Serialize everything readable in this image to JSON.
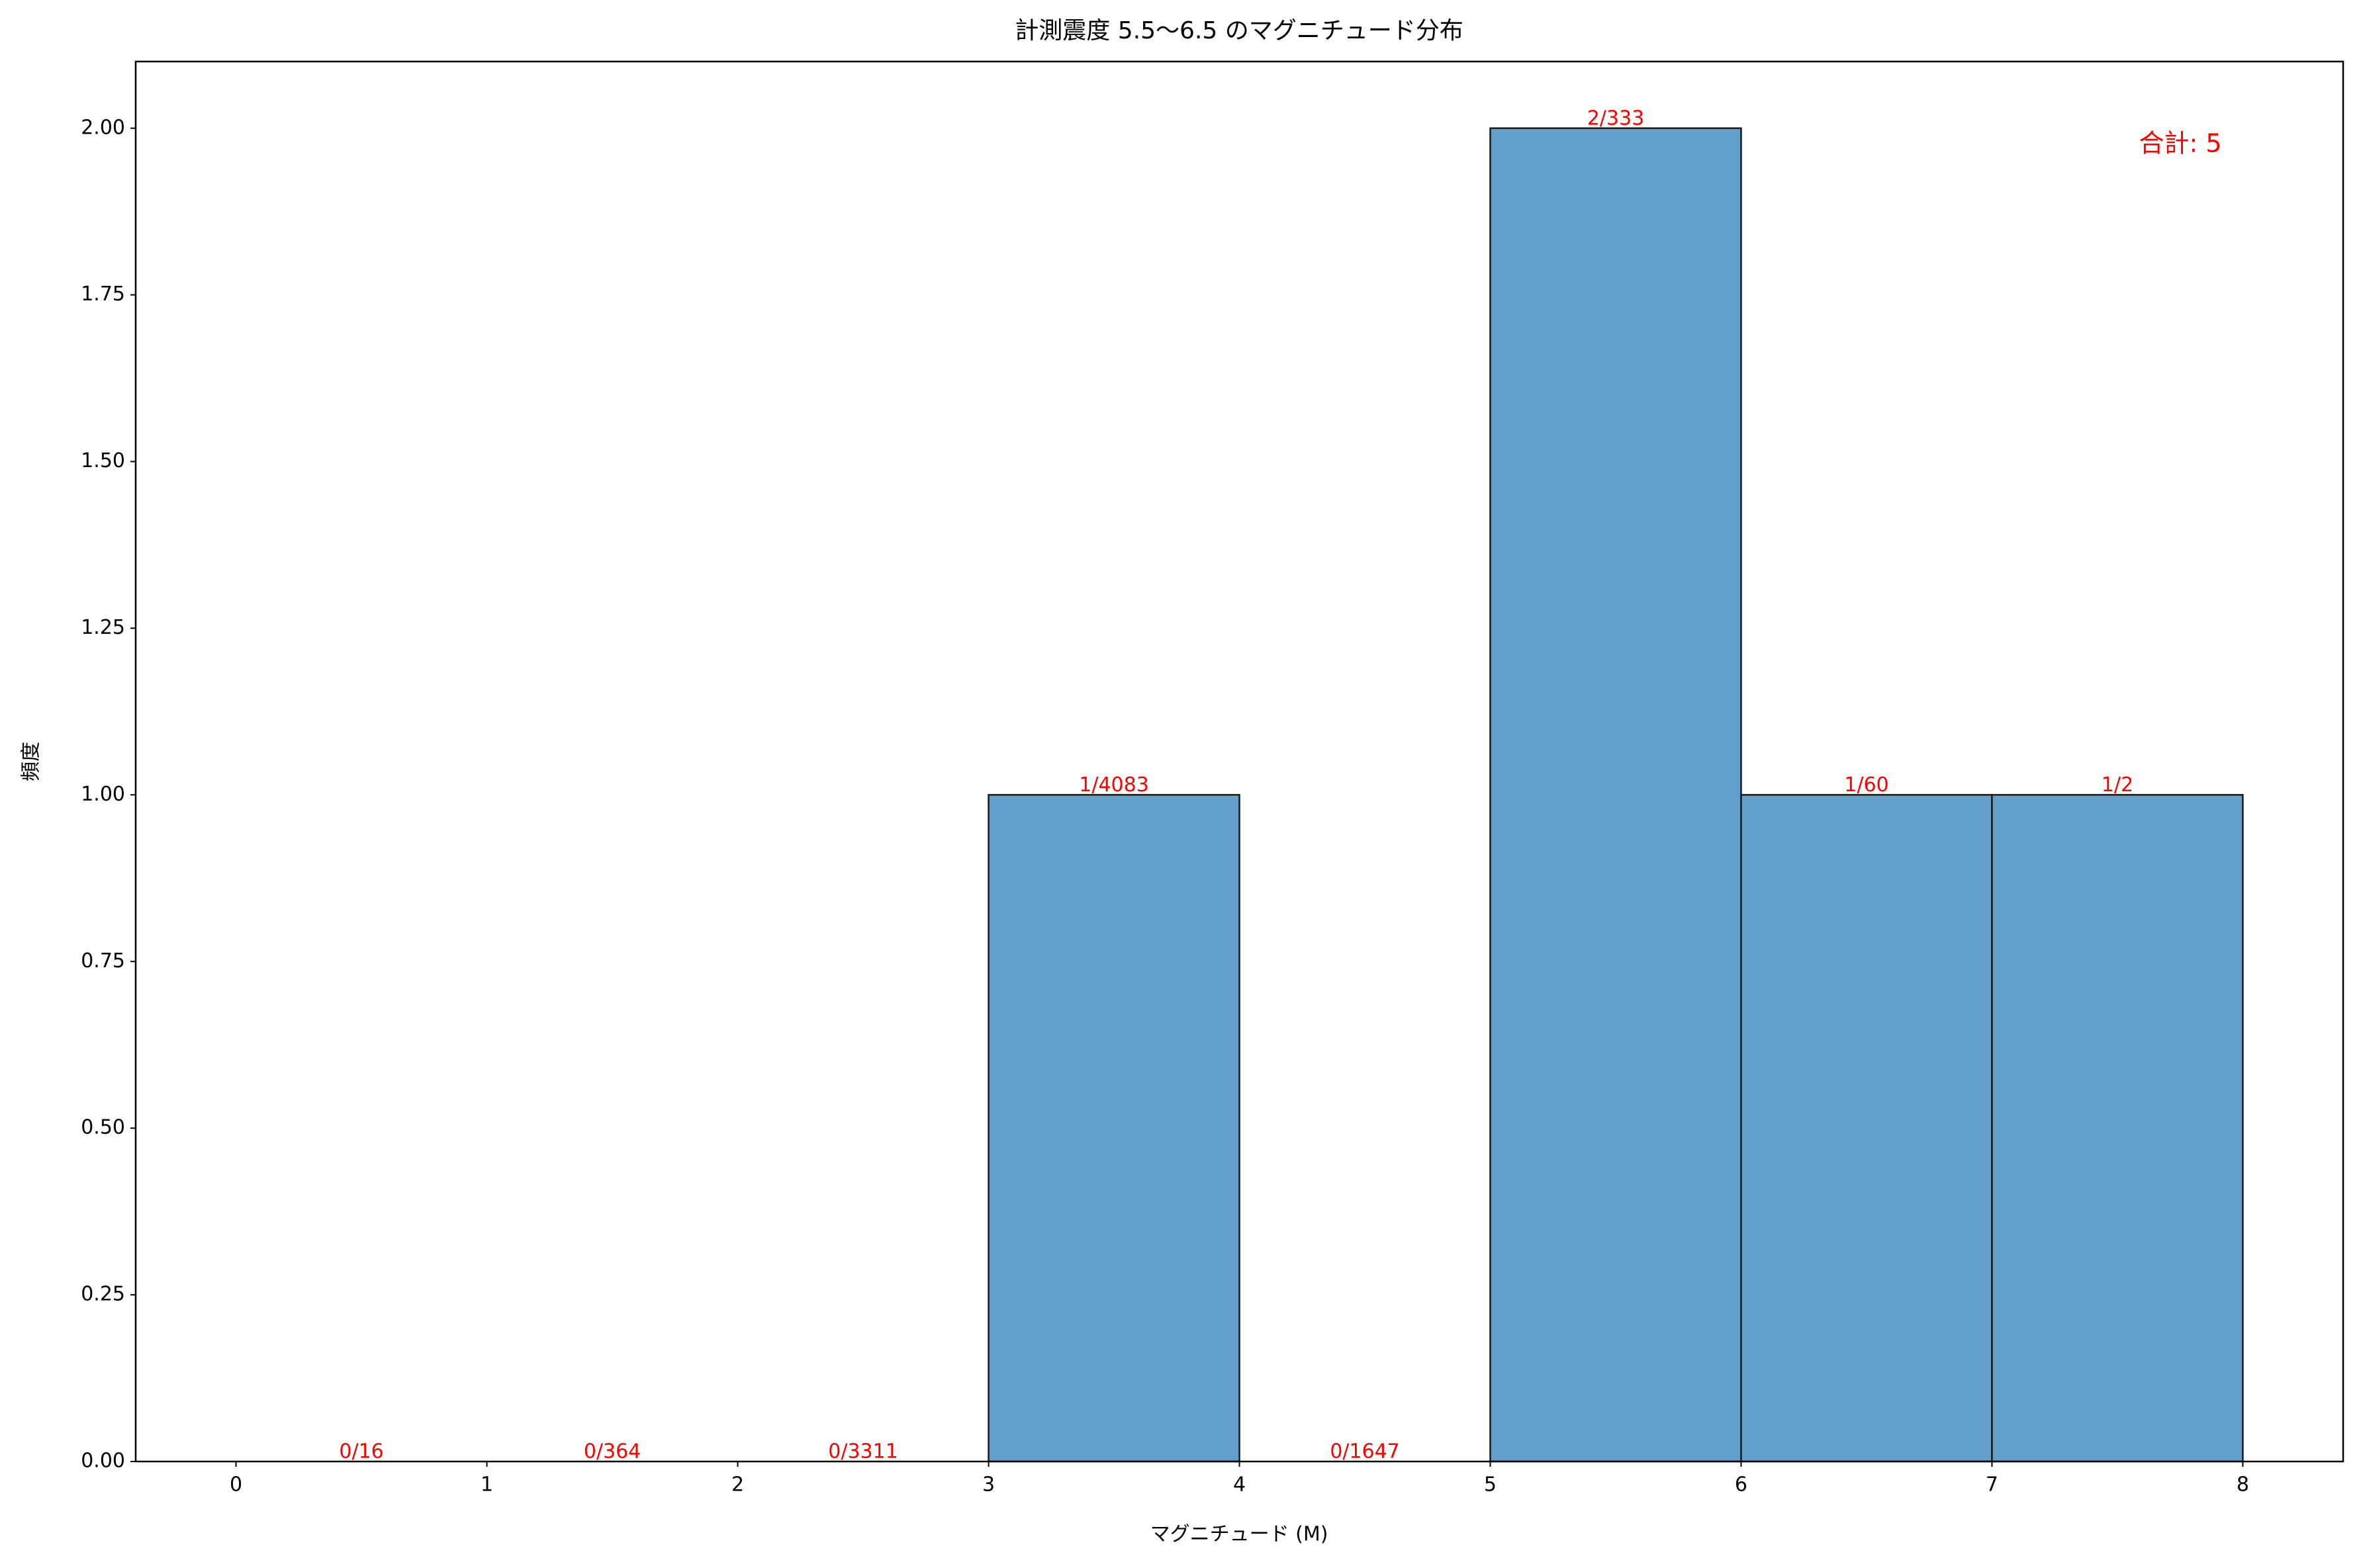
{
  "chart_data": {
    "type": "histogram",
    "title": "計測震度 5.5〜6.5 のマグニチュード分布",
    "x_label": "マグニチュード (M)",
    "y_label": "頻度",
    "bins": [
      0,
      1,
      2,
      3,
      4,
      5,
      6,
      7,
      8
    ],
    "values": [
      0,
      0,
      0,
      1,
      0,
      2,
      1,
      1
    ],
    "value_labels": [
      "0/16",
      "0/364",
      "0/3311",
      "1/4083",
      "0/1647",
      "2/333",
      "1/60",
      "1/2"
    ],
    "color": "#62a0cb",
    "edge_color": "#1a1a1a",
    "label_color": "#ff0000",
    "annotation": "合計: 5",
    "xlim": [
      -0.4,
      8.4
    ],
    "ylim": [
      0,
      2.1
    ],
    "xticks": [
      0,
      1,
      2,
      3,
      4,
      5,
      6,
      7,
      8
    ],
    "yticks": [
      {
        "value": 0,
        "label": "0.00"
      },
      {
        "value": 0.25,
        "label": "0.25"
      },
      {
        "value": 0.5,
        "label": "0.50"
      },
      {
        "value": 0.75,
        "label": "0.75"
      },
      {
        "value": 1,
        "label": "1.00"
      },
      {
        "value": 1.25,
        "label": "1.25"
      },
      {
        "value": 1.5,
        "label": "1.50"
      },
      {
        "value": 1.75,
        "label": "1.75"
      },
      {
        "value": 2,
        "label": "2.00"
      }
    ],
    "grid": false
  }
}
